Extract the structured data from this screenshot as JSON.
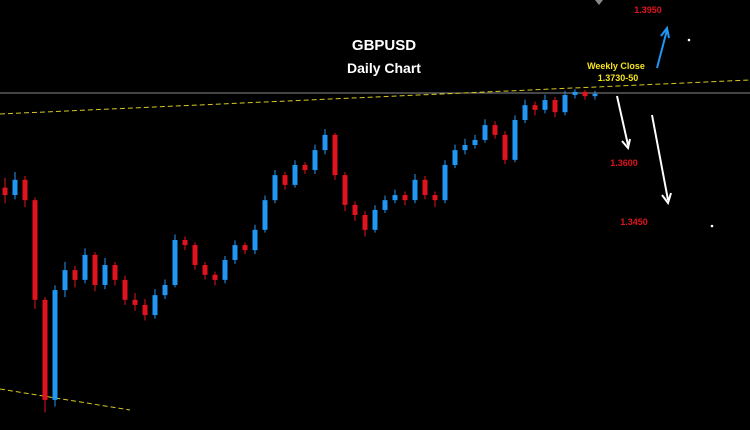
{
  "chart_data": {
    "type": "candlestick",
    "title": "GBPUSD",
    "subtitle": "Daily Chart",
    "annotations": [
      "Weekly Close",
      "1.3730-50",
      "1.3950",
      "1.3600",
      "1.3450"
    ],
    "ylim": [
      1.29,
      1.4
    ],
    "up_color": "#2196f3",
    "down_color": "#e0141e",
    "open": [
      1.352,
      1.3501,
      1.354,
      1.3488,
      1.3233,
      1.2977,
      1.3258,
      1.3309,
      1.3284,
      1.3348,
      1.3271,
      1.3322,
      1.3284,
      1.3233,
      1.322,
      1.3194,
      1.3245,
      1.3271,
      1.3386,
      1.3373,
      1.3322,
      1.3297,
      1.3284,
      1.3335,
      1.3373,
      1.336,
      1.3412,
      1.3488,
      1.3552,
      1.3527,
      1.3578,
      1.3565,
      1.3616,
      1.3655,
      1.3552,
      1.3476,
      1.345,
      1.3412,
      1.3463,
      1.3488,
      1.3501,
      1.3488,
      1.354,
      1.3501,
      1.3488,
      1.3578,
      1.3616,
      1.3629,
      1.3642,
      1.368,
      1.3655,
      1.3591,
      1.3693,
      1.3731,
      1.3719,
      1.3744,
      1.3713,
      1.3757,
      1.3765,
      1.3754
    ],
    "high": [
      1.3545,
      1.356,
      1.355,
      1.3495,
      1.324,
      1.327,
      1.333,
      1.332,
      1.3365,
      1.3355,
      1.334,
      1.333,
      1.3295,
      1.325,
      1.3235,
      1.326,
      1.3285,
      1.34,
      1.3395,
      1.338,
      1.333,
      1.3305,
      1.3345,
      1.3385,
      1.338,
      1.3425,
      1.35,
      1.3565,
      1.356,
      1.359,
      1.3585,
      1.363,
      1.367,
      1.366,
      1.356,
      1.3485,
      1.346,
      1.3475,
      1.35,
      1.3515,
      1.351,
      1.3555,
      1.355,
      1.351,
      1.359,
      1.363,
      1.3645,
      1.3655,
      1.3695,
      1.369,
      1.3665,
      1.3705,
      1.3745,
      1.374,
      1.3758,
      1.3752,
      1.3768,
      1.3772,
      1.377,
      1.3768
    ],
    "low": [
      1.348,
      1.349,
      1.347,
      1.321,
      1.2945,
      1.296,
      1.324,
      1.3265,
      1.3275,
      1.3255,
      1.326,
      1.327,
      1.322,
      1.3205,
      1.318,
      1.3185,
      1.3235,
      1.3265,
      1.336,
      1.331,
      1.3285,
      1.327,
      1.3275,
      1.3325,
      1.335,
      1.335,
      1.3405,
      1.348,
      1.3515,
      1.352,
      1.3555,
      1.3555,
      1.3605,
      1.354,
      1.346,
      1.3435,
      1.3395,
      1.3405,
      1.3455,
      1.348,
      1.3475,
      1.348,
      1.349,
      1.347,
      1.348,
      1.357,
      1.3605,
      1.362,
      1.3635,
      1.3645,
      1.358,
      1.3585,
      1.3685,
      1.3705,
      1.371,
      1.37,
      1.3705,
      1.3748,
      1.3745,
      1.3745
    ],
    "close": [
      1.3501,
      1.354,
      1.3488,
      1.3233,
      1.2977,
      1.3258,
      1.3309,
      1.3284,
      1.3348,
      1.3271,
      1.3322,
      1.3284,
      1.3233,
      1.322,
      1.3194,
      1.3245,
      1.3271,
      1.3386,
      1.3373,
      1.3322,
      1.3297,
      1.3284,
      1.3335,
      1.3373,
      1.336,
      1.3412,
      1.3488,
      1.3552,
      1.3527,
      1.3578,
      1.3565,
      1.3616,
      1.3655,
      1.3552,
      1.3476,
      1.345,
      1.3412,
      1.3463,
      1.3488,
      1.3501,
      1.3488,
      1.354,
      1.3501,
      1.3488,
      1.3578,
      1.3616,
      1.3629,
      1.3642,
      1.368,
      1.3655,
      1.3591,
      1.3693,
      1.3731,
      1.3719,
      1.3744,
      1.3713,
      1.3757,
      1.3765,
      1.3754,
      1.376
    ]
  }
}
